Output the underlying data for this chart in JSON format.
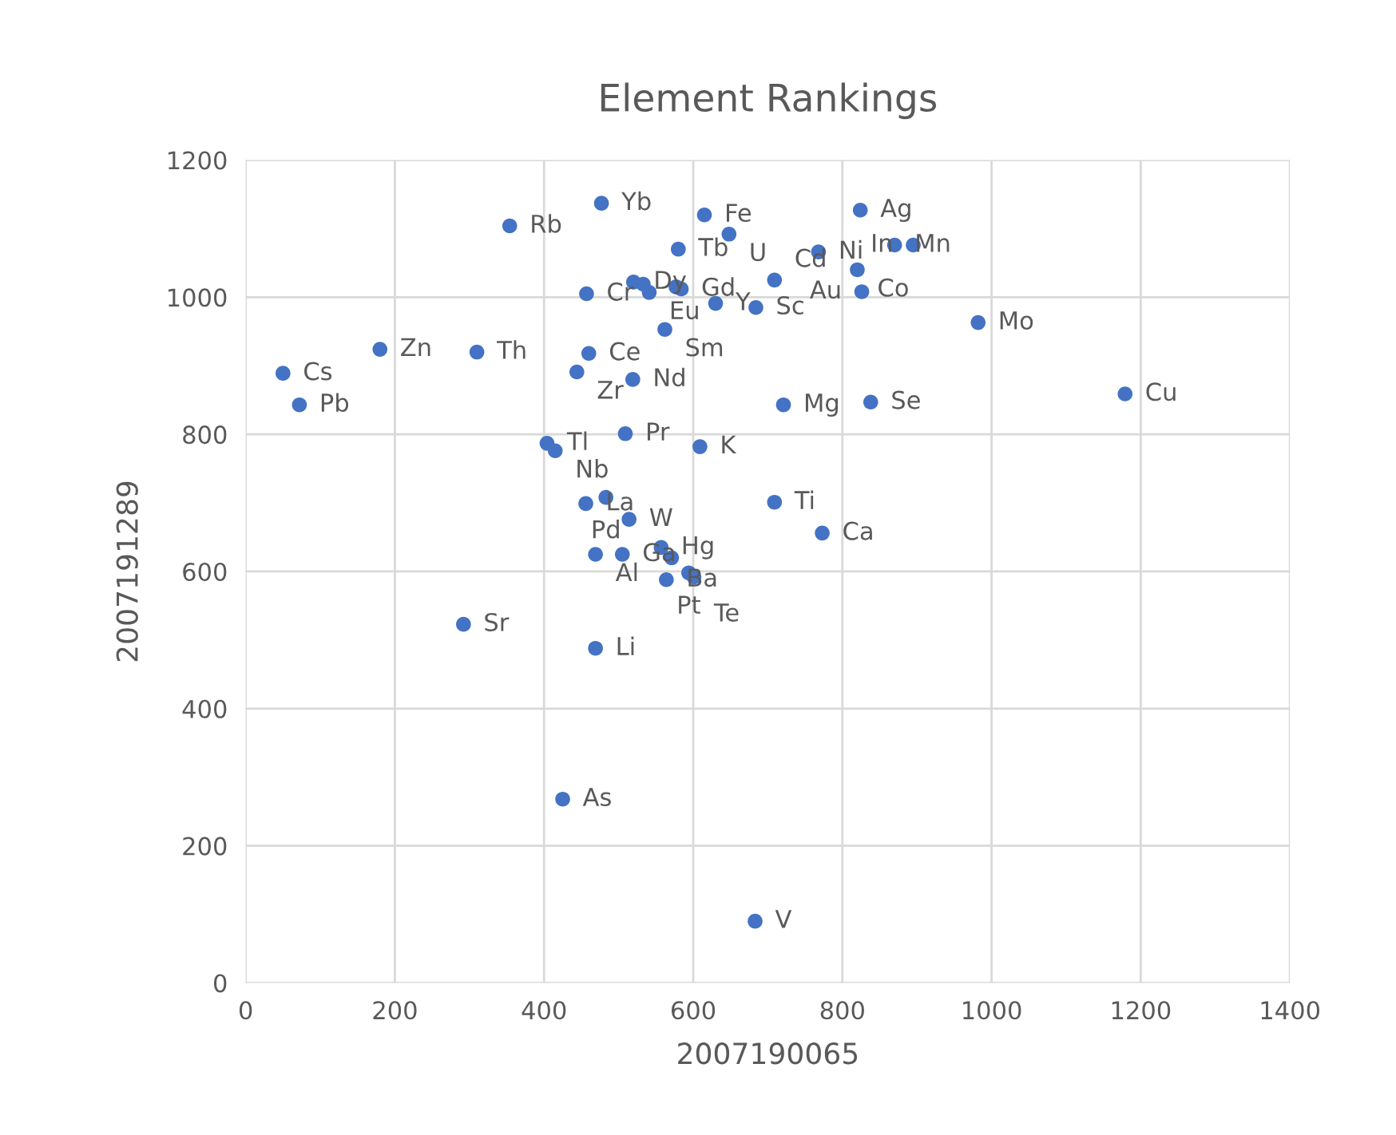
{
  "chart_data": {
    "type": "scatter",
    "title": "Element Rankings",
    "xlabel": "2007190065",
    "ylabel": "2007191289",
    "xlim": [
      0,
      1400
    ],
    "xticks": [
      0,
      200,
      400,
      600,
      800,
      1000,
      1200,
      1400
    ],
    "ylim": [
      0,
      1200
    ],
    "yticks": [
      0,
      200,
      400,
      600,
      800,
      1000,
      1200
    ],
    "grid": true,
    "marker": "circle",
    "series": [
      {
        "color": "#4472c4",
        "x": [
          50,
          72,
          180,
          310,
          292,
          354,
          477,
          615,
          648,
          580,
          768,
          824,
          870,
          895,
          820,
          826,
          709,
          684,
          630,
          457,
          520,
          533,
          541,
          577,
          584,
          562,
          460,
          444,
          519,
          721,
          838,
          982,
          1179,
          404,
          415,
          509,
          609,
          709,
          773,
          456,
          483,
          514,
          469,
          505,
          557,
          571,
          564,
          594,
          601,
          469,
          425,
          683
        ],
        "values": [
          889,
          843,
          924,
          920,
          523,
          1104,
          1137,
          1120,
          1092,
          1070,
          1066,
          1127,
          1076,
          1076,
          1040,
          1008,
          1025,
          985,
          991,
          1005,
          1022,
          1019,
          1007,
          1015,
          1012,
          953,
          918,
          891,
          880,
          843,
          847,
          963,
          859,
          787,
          776,
          801,
          782,
          701,
          656,
          699,
          708,
          676,
          625,
          625,
          635,
          620,
          588,
          598,
          592,
          488,
          268,
          90
        ]
      }
    ],
    "annotations": [
      {
        "text": "Cs",
        "x": 50,
        "y": 889
      },
      {
        "text": "Pb",
        "x": 72,
        "y": 843
      },
      {
        "text": "Zn",
        "x": 180,
        "y": 924
      },
      {
        "text": "Th",
        "x": 310,
        "y": 920
      },
      {
        "text": "Sr",
        "x": 292,
        "y": 523
      },
      {
        "text": "Rb",
        "x": 354,
        "y": 1104
      },
      {
        "text": "Yb",
        "x": 477,
        "y": 1137
      },
      {
        "text": "Fe",
        "x": 615,
        "y": 1120
      },
      {
        "text": "U",
        "x": 648,
        "y": 1092
      },
      {
        "text": "Tb",
        "x": 580,
        "y": 1070
      },
      {
        "text": "Ni",
        "x": 768,
        "y": 1066
      },
      {
        "text": "Ag",
        "x": 824,
        "y": 1127
      },
      {
        "text": "Mn",
        "x": 870,
        "y": 1076
      },
      {
        "text": "In",
        "x": 895,
        "y": 1076
      },
      {
        "text": "Co",
        "x": 820,
        "y": 1040
      },
      {
        "text": "Au",
        "x": 826,
        "y": 1008
      },
      {
        "text": "Cd",
        "x": 709,
        "y": 1025
      },
      {
        "text": "Sc",
        "x": 684,
        "y": 985
      },
      {
        "text": "Y",
        "x": 630,
        "y": 991
      },
      {
        "text": "Cr",
        "x": 457,
        "y": 1005
      },
      {
        "text": "Dy",
        "x": 520,
        "y": 1022
      },
      {
        "text": "Eu",
        "x": 541,
        "y": 1007
      },
      {
        "text": "Gd",
        "x": 584,
        "y": 1012
      },
      {
        "text": "Sm",
        "x": 562,
        "y": 953
      },
      {
        "text": "Ce",
        "x": 460,
        "y": 918
      },
      {
        "text": "Zr",
        "x": 444,
        "y": 891
      },
      {
        "text": "Nd",
        "x": 519,
        "y": 880
      },
      {
        "text": "Mg",
        "x": 721,
        "y": 843
      },
      {
        "text": "Se",
        "x": 838,
        "y": 847
      },
      {
        "text": "Mo",
        "x": 982,
        "y": 963
      },
      {
        "text": "Cu",
        "x": 1179,
        "y": 859
      },
      {
        "text": "Tl",
        "x": 404,
        "y": 787
      },
      {
        "text": "Nb",
        "x": 415,
        "y": 776
      },
      {
        "text": "Pr",
        "x": 509,
        "y": 801
      },
      {
        "text": "K",
        "x": 609,
        "y": 782
      },
      {
        "text": "Ti",
        "x": 709,
        "y": 701
      },
      {
        "text": "Ca",
        "x": 773,
        "y": 656
      },
      {
        "text": "La",
        "x": 456,
        "y": 699
      },
      {
        "text": "Pd",
        "x": 483,
        "y": 708
      },
      {
        "text": "W",
        "x": 514,
        "y": 676
      },
      {
        "text": "Al",
        "x": 469,
        "y": 625
      },
      {
        "text": "Ga",
        "x": 505,
        "y": 625
      },
      {
        "text": "Hg",
        "x": 557,
        "y": 635
      },
      {
        "text": "Ba",
        "x": 564,
        "y": 588
      },
      {
        "text": "Pt",
        "x": 594,
        "y": 598
      },
      {
        "text": "Te",
        "x": 601,
        "y": 592
      },
      {
        "text": "Li",
        "x": 469,
        "y": 488
      },
      {
        "text": "As",
        "x": 425,
        "y": 268
      },
      {
        "text": "V",
        "x": 683,
        "y": 90
      }
    ]
  }
}
